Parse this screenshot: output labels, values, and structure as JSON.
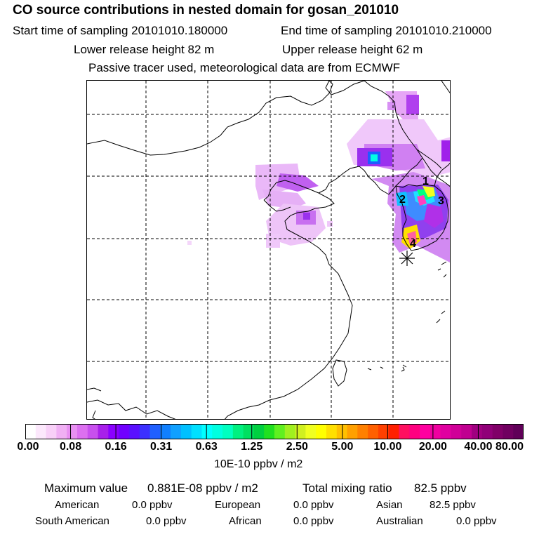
{
  "header": {
    "title": "CO  source contributions in nested domain for gosan_201010",
    "start_label": "Start time of sampling 20101010.180000",
    "end_label": "End time of sampling 20101010.210000",
    "lower_label": "Lower release height   82 m",
    "upper_label": "Upper release height   62 m",
    "tracer_label": "Passive tracer used, meteorological data are from ECMWF"
  },
  "map": {
    "markers": [
      "1",
      "2",
      "3",
      "4"
    ],
    "receptor_symbol": "✳"
  },
  "colorbar": {
    "ticks": [
      "0.00",
      "0.08",
      "0.16",
      "0.31",
      "0.63",
      "1.25",
      "2.50",
      "5.00",
      "10.00",
      "20.00",
      "40.00",
      "80.00"
    ],
    "units": "10E-10 ppbv / m2",
    "colors": [
      "#ffffff",
      "#fce8fc",
      "#f8d0f8",
      "#f0b0f4",
      "#e890f2",
      "#dc70f0",
      "#c850ee",
      "#a820ea",
      "#8a00ff",
      "#7000ff",
      "#5a10ff",
      "#3c30ff",
      "#2060ff",
      "#1080ff",
      "#10a0ff",
      "#00c0ff",
      "#00e0ff",
      "#00ffff",
      "#00ffe0",
      "#00ffc0",
      "#00f080",
      "#00e060",
      "#00d040",
      "#20e020",
      "#60f020",
      "#a0f020",
      "#d0f020",
      "#f0ff20",
      "#ffff00",
      "#ffe000",
      "#ffc000",
      "#ffa000",
      "#ff8000",
      "#ff6000",
      "#ff4000",
      "#ff2000",
      "#ff1060",
      "#ff0080",
      "#ff00a0",
      "#f000a0",
      "#e000a0",
      "#d00098",
      "#c00090",
      "#a00080",
      "#900078",
      "#800068",
      "#700060",
      "#600058"
    ]
  },
  "stats": {
    "max_label": "Maximum value",
    "max_value": "0.881E-08 ppbv / m2",
    "total_label": "Total mixing ratio",
    "total_value": "82.5 ppbv",
    "rows": [
      [
        {
          "name": "American",
          "value": "0.0 ppbv"
        },
        {
          "name": "European",
          "value": "0.0 ppbv"
        },
        {
          "name": "Asian",
          "value": "82.5 ppbv"
        }
      ],
      [
        {
          "name": "South American",
          "value": "0.0 ppbv"
        },
        {
          "name": "African",
          "value": "0.0 ppbv"
        },
        {
          "name": "Australian",
          "value": "0.0 ppbv"
        }
      ]
    ]
  }
}
